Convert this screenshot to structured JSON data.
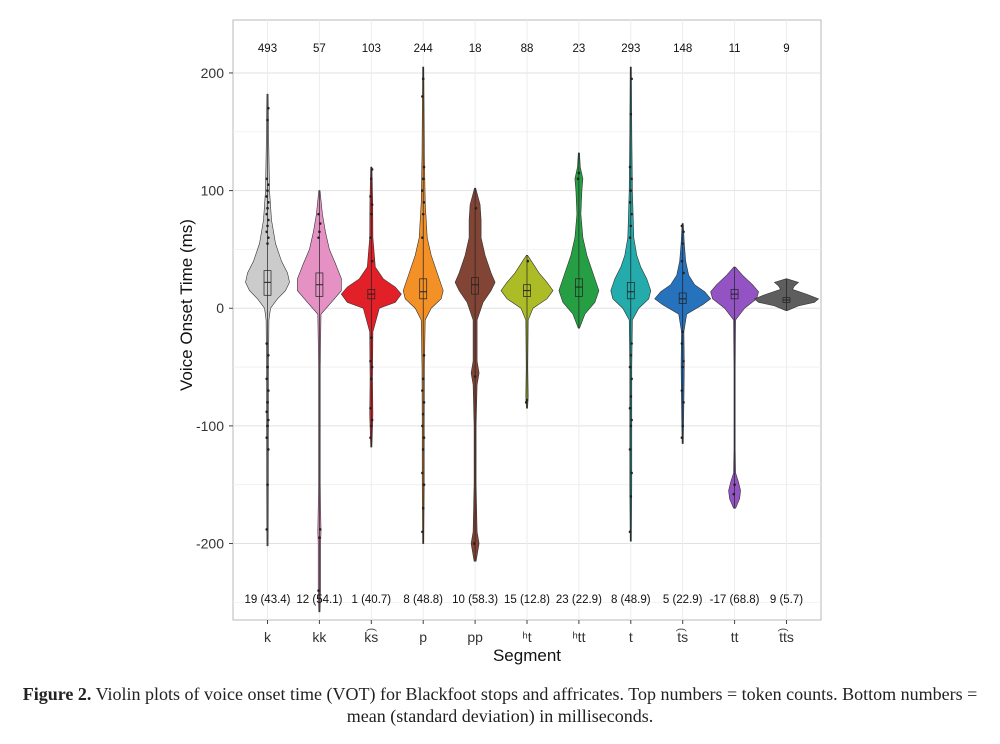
{
  "chart_data": {
    "type": "violin",
    "xlabel": "Segment",
    "ylabel": "Voice Onset Time (ms)",
    "ylim": [
      -265,
      245
    ],
    "yticks": [
      200,
      100,
      0,
      -100,
      -200
    ],
    "grid": true,
    "categories": [
      {
        "label": "k",
        "count": "493",
        "stats": "19 (43.4)",
        "color": "#c8c8c8",
        "median": 22,
        "q1": 11,
        "q3": 32,
        "min": -202,
        "max": 182,
        "shape": [
          [
            -202,
            0.3
          ],
          [
            -150,
            0.4
          ],
          [
            -100,
            0.5
          ],
          [
            -50,
            0.5
          ],
          [
            -10,
            0.7
          ],
          [
            0,
            1.5
          ],
          [
            8,
            5
          ],
          [
            15,
            9
          ],
          [
            22,
            11
          ],
          [
            30,
            10
          ],
          [
            40,
            7
          ],
          [
            55,
            4
          ],
          [
            75,
            2
          ],
          [
            100,
            1
          ],
          [
            140,
            0.6
          ],
          [
            182,
            0.3
          ]
        ],
        "points": [
          -188,
          -150,
          -120,
          -110,
          -100,
          -95,
          -88,
          -80,
          -70,
          -60,
          -50,
          -40,
          -30,
          55,
          60,
          65,
          70,
          75,
          80,
          85,
          90,
          95,
          100,
          105,
          110,
          160,
          170
        ]
      },
      {
        "label": "kk",
        "count": "57",
        "stats": "12 (54.1)",
        "color": "#e48bc0",
        "median": 20,
        "q1": 10,
        "q3": 30,
        "min": -258,
        "max": 100,
        "shape": [
          [
            -258,
            0.3
          ],
          [
            -240,
            0.6
          ],
          [
            -200,
            0.6
          ],
          [
            -190,
            0.8
          ],
          [
            -150,
            0.4
          ],
          [
            -50,
            0.4
          ],
          [
            -5,
            0.8
          ],
          [
            5,
            6
          ],
          [
            15,
            11
          ],
          [
            25,
            11
          ],
          [
            38,
            8
          ],
          [
            50,
            5
          ],
          [
            65,
            3
          ],
          [
            80,
            1.5
          ],
          [
            100,
            0.3
          ]
        ],
        "points": [
          -240,
          -195,
          -188,
          60,
          65,
          72,
          80
        ]
      },
      {
        "label": "k͡s",
        "count": "103",
        "stats": "1 (40.7)",
        "color": "#e0141c",
        "median": 12,
        "q1": 8,
        "q3": 16,
        "min": -118,
        "max": 120,
        "shape": [
          [
            -118,
            0.3
          ],
          [
            -90,
            0.8
          ],
          [
            -60,
            0.6
          ],
          [
            -20,
            0.8
          ],
          [
            0,
            4
          ],
          [
            5,
            12
          ],
          [
            12,
            15
          ],
          [
            18,
            12
          ],
          [
            25,
            6
          ],
          [
            35,
            2
          ],
          [
            60,
            0.8
          ],
          [
            90,
            0.7
          ],
          [
            120,
            0.3
          ]
        ],
        "points": [
          -110,
          -100,
          -95,
          -85,
          -60,
          -50,
          -45,
          -25,
          40,
          60,
          80,
          88,
          95,
          110,
          118
        ]
      },
      {
        "label": "p",
        "count": "244",
        "stats": "8 (48.8)",
        "color": "#f28a1a",
        "median": 14,
        "q1": 8,
        "q3": 25,
        "min": -200,
        "max": 205,
        "shape": [
          [
            -200,
            0.3
          ],
          [
            -150,
            0.5
          ],
          [
            -100,
            0.5
          ],
          [
            -50,
            0.6
          ],
          [
            -10,
            1
          ],
          [
            0,
            4
          ],
          [
            8,
            9
          ],
          [
            15,
            10
          ],
          [
            25,
            8
          ],
          [
            35,
            6
          ],
          [
            45,
            4
          ],
          [
            60,
            2
          ],
          [
            90,
            1
          ],
          [
            130,
            0.6
          ],
          [
            205,
            0.3
          ]
        ],
        "points": [
          -190,
          -170,
          -150,
          -140,
          -120,
          -110,
          -100,
          -90,
          -80,
          -70,
          -60,
          -40,
          60,
          80,
          90,
          100,
          110,
          120,
          180,
          195
        ]
      },
      {
        "label": "pp",
        "count": "18",
        "stats": "10 (58.3)",
        "color": "#7a3a2a",
        "median": 20,
        "q1": 12,
        "q3": 26,
        "min": -215,
        "max": 102,
        "shape": [
          [
            -215,
            0.5
          ],
          [
            -200,
            2
          ],
          [
            -190,
            1
          ],
          [
            -150,
            0.5
          ],
          [
            -100,
            0.5
          ],
          [
            -65,
            1
          ],
          [
            -55,
            2
          ],
          [
            -45,
            1
          ],
          [
            -10,
            1
          ],
          [
            5,
            4
          ],
          [
            15,
            8
          ],
          [
            22,
            10
          ],
          [
            30,
            8
          ],
          [
            45,
            5
          ],
          [
            60,
            3
          ],
          [
            75,
            3
          ],
          [
            88,
            2.5
          ],
          [
            102,
            0.3
          ]
        ],
        "points": [
          -200,
          -58,
          85
        ]
      },
      {
        "label": "ʰt",
        "count": "88",
        "stats": "15 (12.8)",
        "color": "#a8b81a",
        "median": 15,
        "q1": 10,
        "q3": 20,
        "min": -85,
        "max": 45,
        "shape": [
          [
            -85,
            0.3
          ],
          [
            -75,
            0.6
          ],
          [
            -50,
            0.4
          ],
          [
            -10,
            0.6
          ],
          [
            0,
            3
          ],
          [
            8,
            10
          ],
          [
            15,
            13
          ],
          [
            22,
            10
          ],
          [
            30,
            6
          ],
          [
            38,
            3
          ],
          [
            45,
            0.3
          ]
        ],
        "points": [
          -80,
          -78,
          40
        ]
      },
      {
        "label": "ʰtt",
        "count": "23",
        "stats": "23 (22.9)",
        "color": "#1a9a3a",
        "median": 18,
        "q1": 10,
        "q3": 25,
        "min": -17,
        "max": 132,
        "shape": [
          [
            -17,
            0.3
          ],
          [
            -5,
            3
          ],
          [
            5,
            8
          ],
          [
            15,
            10
          ],
          [
            25,
            8
          ],
          [
            35,
            6
          ],
          [
            45,
            4
          ],
          [
            60,
            2
          ],
          [
            80,
            1
          ],
          [
            100,
            1.5
          ],
          [
            110,
            2
          ],
          [
            120,
            0.7
          ],
          [
            132,
            0.3
          ]
        ],
        "points": [
          110,
          115
        ]
      },
      {
        "label": "t",
        "count": "293",
        "stats": "8 (48.9)",
        "color": "#18a6a6",
        "median": 14,
        "q1": 8,
        "q3": 22,
        "min": -198,
        "max": 205,
        "shape": [
          [
            -198,
            0.3
          ],
          [
            -150,
            0.5
          ],
          [
            -100,
            0.5
          ],
          [
            -50,
            0.5
          ],
          [
            -10,
            0.8
          ],
          [
            0,
            4
          ],
          [
            8,
            9
          ],
          [
            15,
            10
          ],
          [
            25,
            8
          ],
          [
            35,
            5
          ],
          [
            45,
            3
          ],
          [
            60,
            1.5
          ],
          [
            100,
            0.8
          ],
          [
            150,
            0.5
          ],
          [
            205,
            0.3
          ]
        ],
        "points": [
          -190,
          -160,
          -140,
          -120,
          -100,
          -95,
          -85,
          -75,
          -60,
          -50,
          -40,
          -30,
          60,
          70,
          80,
          90,
          100,
          110,
          120,
          165,
          195
        ]
      },
      {
        "label": "t͡s",
        "count": "148",
        "stats": "5 (22.9)",
        "color": "#1a6ab8",
        "median": 8,
        "q1": 4,
        "q3": 13,
        "min": -115,
        "max": 72,
        "shape": [
          [
            -115,
            0.3
          ],
          [
            -80,
            0.6
          ],
          [
            -48,
            0.8
          ],
          [
            -20,
            0.6
          ],
          [
            -5,
            2
          ],
          [
            3,
            10
          ],
          [
            8,
            14
          ],
          [
            14,
            11
          ],
          [
            20,
            6
          ],
          [
            28,
            3
          ],
          [
            40,
            1.5
          ],
          [
            55,
            0.8
          ],
          [
            72,
            0.3
          ]
        ],
        "points": [
          -110,
          -100,
          -80,
          -70,
          -50,
          -45,
          -30,
          -20,
          30,
          40,
          55,
          65,
          70
        ]
      },
      {
        "label": "tt",
        "count": "11",
        "stats": "-17 (68.8)",
        "color": "#8e4ac0",
        "median": 12,
        "q1": 8,
        "q3": 16,
        "min": -170,
        "max": 35,
        "shape": [
          [
            -170,
            0.5
          ],
          [
            -162,
            2.5
          ],
          [
            -155,
            3
          ],
          [
            -148,
            2
          ],
          [
            -140,
            0.5
          ],
          [
            -120,
            0.3
          ],
          [
            -50,
            0.3
          ],
          [
            -10,
            0.5
          ],
          [
            0,
            5
          ],
          [
            8,
            11
          ],
          [
            14,
            12
          ],
          [
            20,
            9
          ],
          [
            28,
            4
          ],
          [
            35,
            0.4
          ]
        ],
        "points": [
          -158,
          -150
        ]
      },
      {
        "label": "t͡ts",
        "count": "9",
        "stats": "9 (5.7)",
        "color": "#555555",
        "median": 7,
        "q1": 5,
        "q3": 9,
        "min": -2,
        "max": 25,
        "shape": [
          [
            -2,
            0.4
          ],
          [
            2,
            6
          ],
          [
            5,
            14
          ],
          [
            8,
            16
          ],
          [
            12,
            10
          ],
          [
            16,
            3
          ],
          [
            19,
            4
          ],
          [
            22,
            6
          ],
          [
            25,
            0.3
          ]
        ],
        "points": []
      }
    ]
  },
  "caption": {
    "label": "Figure 2.",
    "text": "Violin plots of voice onset time (VOT) for Blackfoot stops and affricates. Top numbers = token counts. Bottom numbers = mean (standard deviation) in milliseconds."
  }
}
